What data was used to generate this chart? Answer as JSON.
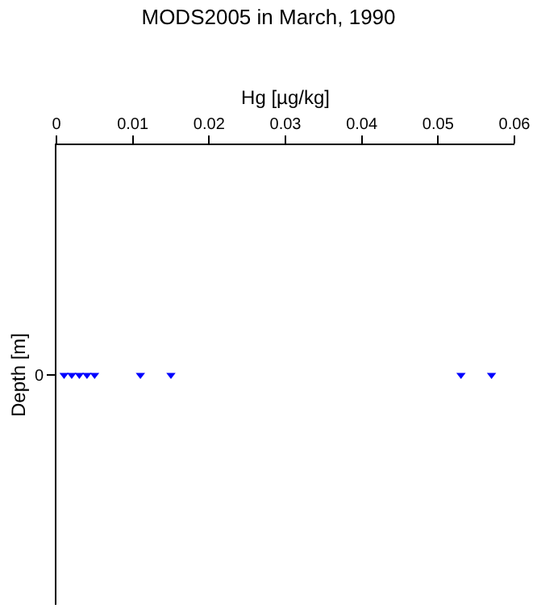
{
  "chart_data": {
    "type": "scatter",
    "orientation": "horizontal",
    "title": "MODS2005 in March, 1990",
    "xlabel": "Hg [µg/kg]",
    "ylabel": "Depth [m]",
    "categories": [
      "0"
    ],
    "series": [
      {
        "color": "#0000ff",
        "values": [
          0.001
        ]
      },
      {
        "color": "#0000ff",
        "values": [
          0.002
        ]
      },
      {
        "color": "#0000ff",
        "values": [
          0.003
        ]
      },
      {
        "color": "#0000ff",
        "values": [
          0.004
        ]
      },
      {
        "color": "#0000ff",
        "values": [
          0.005
        ]
      },
      {
        "color": "#0000ff",
        "values": [
          0.011
        ]
      },
      {
        "color": "#0000ff",
        "values": [
          0.015
        ]
      },
      {
        "color": "#0000ff",
        "values": [
          0.053
        ]
      },
      {
        "color": "#0000ff",
        "values": [
          0.057
        ]
      }
    ],
    "xlim": [
      0,
      0.06
    ],
    "xticks": [
      0,
      0.01,
      0.02,
      0.03,
      0.04,
      0.05,
      0.06
    ],
    "legend": false,
    "marker": "triangle"
  }
}
